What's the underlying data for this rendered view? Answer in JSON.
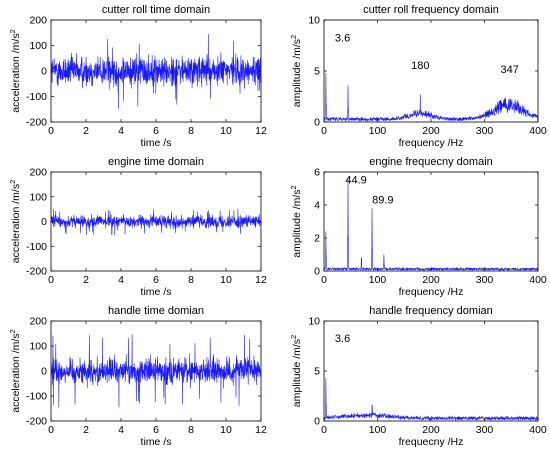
{
  "figure": {
    "signal_color": "#1a1aff",
    "axis_color": "#000000"
  },
  "chart_data": [
    {
      "type": "line",
      "title": "cutter roll time domain",
      "xlabel": "time /s",
      "ylabel": "acceleration /m/s",
      "ylabel_superscript": "2",
      "xlim": [
        0,
        12
      ],
      "ylim": [
        -200,
        200
      ],
      "xticks": [
        0,
        2,
        4,
        6,
        8,
        10,
        12
      ],
      "yticks": [
        200,
        100,
        0,
        -100,
        -200
      ],
      "tick_labels_x": [
        "0",
        "2",
        "4",
        "6",
        "8",
        "10",
        "12"
      ],
      "tick_labels_y": [
        "200",
        "100",
        "0",
        "-100",
        "-200"
      ],
      "signal": {
        "kind": "time",
        "amplitude": 55,
        "peak": 150
      },
      "annotations": []
    },
    {
      "type": "line",
      "title": "cutter roll frequency domain",
      "xlabel": "frequency /Hz",
      "ylabel": "amplitude /m/s",
      "ylabel_superscript": "2",
      "xlim": [
        0,
        400
      ],
      "ylim": [
        0,
        10
      ],
      "xticks": [
        0,
        100,
        200,
        300,
        400
      ],
      "yticks": [
        10,
        5,
        0
      ],
      "tick_labels_x": [
        "0",
        "100",
        "200",
        "300",
        "400"
      ],
      "tick_labels_y": [
        "10",
        "5",
        "0"
      ],
      "signal": {
        "kind": "spectrum",
        "floor": 0.35,
        "peaks": [
          [
            3.6,
            4.8
          ],
          [
            45,
            3.6
          ],
          [
            180,
            2.7
          ],
          [
            347,
            2.3
          ]
        ],
        "humps": [
          [
            180,
            30,
            0.6
          ],
          [
            345,
            40,
            1.4
          ]
        ]
      },
      "annotations": [
        {
          "text": "3.6",
          "x": 3.6,
          "y": 7.9
        },
        {
          "text": "180",
          "x": 180,
          "y": 5.2
        },
        {
          "text": "347",
          "x": 347,
          "y": 4.8
        }
      ]
    },
    {
      "type": "line",
      "title": "engine time domain",
      "xlabel": "time /s",
      "ylabel": "acceleration /m/s",
      "ylabel_superscript": "2",
      "xlim": [
        0,
        12
      ],
      "ylim": [
        -200,
        200
      ],
      "xticks": [
        0,
        2,
        4,
        6,
        8,
        10,
        12
      ],
      "yticks": [
        200,
        100,
        0,
        -100,
        -200
      ],
      "tick_labels_x": [
        "0",
        "2",
        "4",
        "6",
        "8",
        "10",
        "12"
      ],
      "tick_labels_y": [
        "200",
        "100",
        "0",
        "-100",
        "-200"
      ],
      "signal": {
        "kind": "time",
        "amplitude": 22,
        "peak": 55
      },
      "annotations": []
    },
    {
      "type": "line",
      "title": "engine frequecny domain",
      "xlabel": "frequency /Hz",
      "ylabel": "amplitude /m/s",
      "ylabel_superscript": "2",
      "xlim": [
        0,
        400
      ],
      "ylim": [
        0,
        6
      ],
      "xticks": [
        0,
        100,
        200,
        300,
        400
      ],
      "yticks": [
        6,
        4,
        2,
        0
      ],
      "tick_labels_x": [
        "0",
        "100",
        "200",
        "300",
        "400"
      ],
      "tick_labels_y": [
        "6",
        "4",
        "2",
        "0"
      ],
      "signal": {
        "kind": "spectrum",
        "floor": 0.15,
        "peaks": [
          [
            3.6,
            2.4
          ],
          [
            44.9,
            5.7
          ],
          [
            70,
            0.8
          ],
          [
            89.9,
            3.8
          ],
          [
            112,
            1.0
          ]
        ],
        "humps": []
      },
      "annotations": [
        {
          "text": "44.9",
          "x": 60,
          "y": 5.3
        },
        {
          "text": "89.9",
          "x": 110,
          "y": 4.1
        }
      ]
    },
    {
      "type": "line",
      "title": "handle time domian",
      "xlabel": "time /s",
      "ylabel": "acceleration /m/s",
      "ylabel_superscript": "2",
      "xlim": [
        0,
        12
      ],
      "ylim": [
        -200,
        200
      ],
      "xticks": [
        0,
        2,
        4,
        6,
        8,
        10,
        12
      ],
      "yticks": [
        200,
        100,
        0,
        -100,
        -200
      ],
      "tick_labels_x": [
        "0",
        "2",
        "4",
        "6",
        "8",
        "10",
        "12"
      ],
      "tick_labels_y": [
        "200",
        "100",
        "0",
        "-100",
        "-200"
      ],
      "signal": {
        "kind": "time",
        "amplitude": 45,
        "peak": 150
      },
      "annotations": []
    },
    {
      "type": "line",
      "title": "handle frequency domian",
      "xlabel": "frequecny /Hz",
      "ylabel": "amplitude /m/s",
      "ylabel_superscript": "2",
      "xlim": [
        0,
        400
      ],
      "ylim": [
        0,
        10
      ],
      "xticks": [
        0,
        100,
        200,
        300,
        400
      ],
      "yticks": [
        10,
        5,
        0
      ],
      "tick_labels_x": [
        "0",
        "100",
        "200",
        "300",
        "400"
      ],
      "tick_labels_y": [
        "10",
        "5",
        "0"
      ],
      "signal": {
        "kind": "spectrum",
        "floor": 0.35,
        "peaks": [
          [
            3.6,
            4.3
          ],
          [
            90,
            1.6
          ]
        ],
        "humps": [
          [
            80,
            60,
            0.3
          ]
        ]
      },
      "annotations": [
        {
          "text": "3.6",
          "x": 3.6,
          "y": 7.9
        }
      ]
    }
  ]
}
